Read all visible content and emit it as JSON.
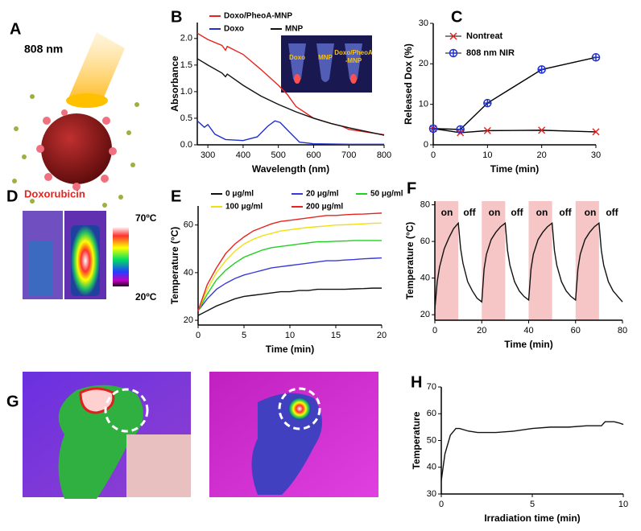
{
  "panel_a": {
    "label": "A",
    "wavelength": "808 nm",
    "drug": "Doxorubicin"
  },
  "panel_d": {
    "label": "D",
    "scale_max": "70ºC",
    "scale_min": "20ºC"
  },
  "panel_g": {
    "label": "G"
  },
  "chart_data": [
    {
      "panel": "B",
      "type": "line",
      "xlabel": "Wavelength (nm)",
      "ylabel": "Absorbance",
      "inset_labels": [
        "Doxo",
        "MNP",
        "Doxo/PheoA",
        "-MNP"
      ],
      "xlim": [
        270,
        800
      ],
      "xticks": [
        300,
        400,
        500,
        600,
        700,
        800
      ],
      "ylim": [
        0,
        2.3
      ],
      "yticks": [
        {
          "value": 0,
          "label": "0.0"
        },
        0.5,
        {
          "value": 1,
          "label": "1.0"
        },
        1.5,
        {
          "value": 2,
          "label": "2.0"
        }
      ],
      "series": [
        {
          "name": "Doxo/PheoA-MNP",
          "color": "#e8231f",
          "x": [
            270,
            300,
            340,
            350,
            355,
            400,
            450,
            500,
            525,
            550,
            600,
            650,
            680,
            700,
            750,
            800
          ],
          "values": [
            2.1,
            1.98,
            1.87,
            1.78,
            1.85,
            1.7,
            1.42,
            1.12,
            0.95,
            0.72,
            0.5,
            0.4,
            0.35,
            0.29,
            0.24,
            0.19
          ]
        },
        {
          "name": "Doxo",
          "color": "#2030d0",
          "x": [
            270,
            290,
            300,
            320,
            350,
            400,
            440,
            470,
            490,
            505,
            530,
            560,
            600,
            700,
            800
          ],
          "values": [
            0.45,
            0.33,
            0.38,
            0.2,
            0.1,
            0.08,
            0.15,
            0.35,
            0.45,
            0.42,
            0.25,
            0.05,
            0.02,
            0.01,
            0.01
          ]
        },
        {
          "name": "MNP",
          "color": "#111111",
          "x": [
            270,
            300,
            340,
            350,
            355,
            400,
            450,
            500,
            550,
            600,
            650,
            700,
            750,
            800
          ],
          "values": [
            1.62,
            1.5,
            1.35,
            1.28,
            1.33,
            1.12,
            0.92,
            0.76,
            0.62,
            0.5,
            0.4,
            0.32,
            0.25,
            0.18
          ]
        }
      ]
    },
    {
      "panel": "C",
      "type": "line",
      "xlabel": "Time (min)",
      "ylabel": "Released Dox (%)",
      "xlim": [
        0,
        30
      ],
      "xticks": [
        0,
        10,
        20,
        30
      ],
      "ylim": [
        0,
        30
      ],
      "yticks": [
        0,
        10,
        20,
        30
      ],
      "series": [
        {
          "name": "Nontreat",
          "color": "#e8231f",
          "marker": "x",
          "x": [
            0,
            5,
            10,
            20,
            30
          ],
          "values": [
            4,
            3,
            3.5,
            3.6,
            3.2
          ]
        },
        {
          "name": "808 nm NIR",
          "color": "#2030d0",
          "marker": "circle-plus",
          "x": [
            0,
            5,
            10,
            20,
            30
          ],
          "values": [
            4,
            3.8,
            10.3,
            18.6,
            21.6
          ]
        }
      ]
    },
    {
      "panel": "E",
      "type": "line",
      "xlabel": "Time (min)",
      "ylabel": "Temperature (°C)",
      "xlim": [
        0,
        20
      ],
      "xticks": [
        0,
        5,
        10,
        15,
        20
      ],
      "ylim": [
        18,
        68
      ],
      "yticks": [
        20,
        40,
        60
      ],
      "series": [
        {
          "name": "0  μg/ml",
          "color": "#111111",
          "x": [
            0,
            1,
            2,
            3,
            4,
            5,
            6,
            7,
            8,
            9,
            10,
            11,
            12,
            13,
            14,
            15,
            16,
            17,
            18,
            19,
            20
          ],
          "values": [
            22,
            24,
            26,
            27.5,
            29,
            30,
            30.5,
            31,
            31.5,
            32,
            32,
            32.5,
            32.5,
            33,
            33,
            33,
            33,
            33.2,
            33.3,
            33.5,
            33.5
          ]
        },
        {
          "name": "20 μg/ml",
          "color": "#3a3ad8",
          "x": [
            0,
            1,
            2,
            3,
            4,
            5,
            6,
            7,
            8,
            9,
            10,
            11,
            12,
            13,
            14,
            15,
            16,
            17,
            18,
            19,
            20
          ],
          "values": [
            24,
            29,
            33,
            35.5,
            37.5,
            39,
            40,
            41,
            42,
            42.5,
            43,
            43.5,
            44,
            44.5,
            45,
            45,
            45.3,
            45.5,
            45.8,
            46,
            46.2
          ]
        },
        {
          "name": "50 μg/ml",
          "color": "#22d022",
          "x": [
            0,
            1,
            2,
            3,
            4,
            5,
            6,
            7,
            8,
            9,
            10,
            11,
            12,
            13,
            14,
            15,
            16,
            17,
            18,
            19,
            20
          ],
          "values": [
            24,
            31,
            37,
            41,
            44,
            46.5,
            48,
            49.5,
            50.5,
            51,
            51.5,
            52,
            52.5,
            53,
            53,
            53.2,
            53.3,
            53.5,
            53.5,
            53.5,
            53.5
          ]
        },
        {
          "name": "100 μg/ml",
          "color": "#f0e010",
          "x": [
            0,
            1,
            2,
            3,
            4,
            5,
            6,
            7,
            8,
            9,
            10,
            11,
            12,
            13,
            14,
            15,
            16,
            17,
            18,
            19,
            20
          ],
          "values": [
            24,
            33,
            40,
            45,
            49,
            52,
            54,
            55.5,
            56.5,
            57.5,
            58,
            58.5,
            59,
            59.3,
            59.6,
            60,
            60.1,
            60.3,
            60.5,
            60.7,
            60.8
          ]
        },
        {
          "name": "200 μg/ml",
          "color": "#e8231f",
          "x": [
            0,
            1,
            2,
            3,
            4,
            5,
            6,
            7,
            8,
            9,
            10,
            11,
            12,
            13,
            14,
            15,
            16,
            17,
            18,
            19,
            20
          ],
          "values": [
            24,
            35,
            42,
            48,
            52,
            55,
            57.5,
            59,
            60.5,
            61.5,
            62,
            62.5,
            63,
            63.5,
            64,
            64,
            64.3,
            64.5,
            64.6,
            64.8,
            65
          ]
        }
      ]
    },
    {
      "panel": "F",
      "type": "line",
      "xlabel": "Time (min)",
      "ylabel": "Temperature (°C)",
      "xlim": [
        0,
        80
      ],
      "xticks": [
        0,
        20,
        40,
        60,
        80
      ],
      "ylim": [
        17,
        82
      ],
      "yticks": [
        20,
        40,
        60,
        80
      ],
      "on_intervals": [
        [
          0,
          10
        ],
        [
          20,
          30
        ],
        [
          40,
          50
        ],
        [
          60,
          70
        ]
      ],
      "annotations": [
        "on",
        "off",
        "on",
        "off",
        "on",
        "off",
        "on",
        "off"
      ],
      "series": [
        {
          "name": null,
          "color": "#111111",
          "x": [
            0,
            1,
            2,
            4,
            6,
            8,
            10,
            11,
            12,
            14,
            16,
            18,
            20,
            21,
            22,
            24,
            26,
            28,
            30,
            31,
            32,
            34,
            36,
            38,
            40,
            41,
            42,
            44,
            46,
            48,
            50,
            51,
            52,
            54,
            56,
            58,
            60,
            61,
            62,
            64,
            66,
            68,
            70,
            71,
            72,
            74,
            76,
            78,
            80
          ],
          "values": [
            23,
            38,
            46,
            56,
            62,
            67,
            70,
            56,
            48,
            38,
            33,
            29,
            27,
            45,
            53,
            61,
            65,
            68,
            70,
            55,
            47,
            38,
            33,
            30,
            28,
            45,
            53,
            61,
            65,
            68,
            70,
            55,
            47,
            38,
            33,
            30,
            28,
            45,
            53,
            61,
            65,
            68,
            70,
            55,
            47,
            38,
            33,
            30,
            27
          ]
        }
      ]
    },
    {
      "panel": "H",
      "type": "line",
      "xlabel": "Irradiation time (min)",
      "ylabel": "Temperature",
      "xlim": [
        0,
        10
      ],
      "xticks": [
        0,
        5,
        10
      ],
      "ylim": [
        30,
        70
      ],
      "yticks": [
        30,
        40,
        50,
        60,
        70
      ],
      "series": [
        {
          "name": null,
          "color": "#111111",
          "x": [
            0,
            0.2,
            0.5,
            0.8,
            1,
            1.5,
            2,
            3,
            4,
            5,
            6,
            7,
            8,
            8.8,
            9,
            9.5,
            9.8,
            10
          ],
          "values": [
            35,
            45,
            52,
            54.5,
            54.5,
            53.5,
            53,
            53,
            53.5,
            54.5,
            55,
            55,
            55.5,
            55.5,
            57,
            57,
            56.5,
            56
          ]
        }
      ]
    }
  ]
}
